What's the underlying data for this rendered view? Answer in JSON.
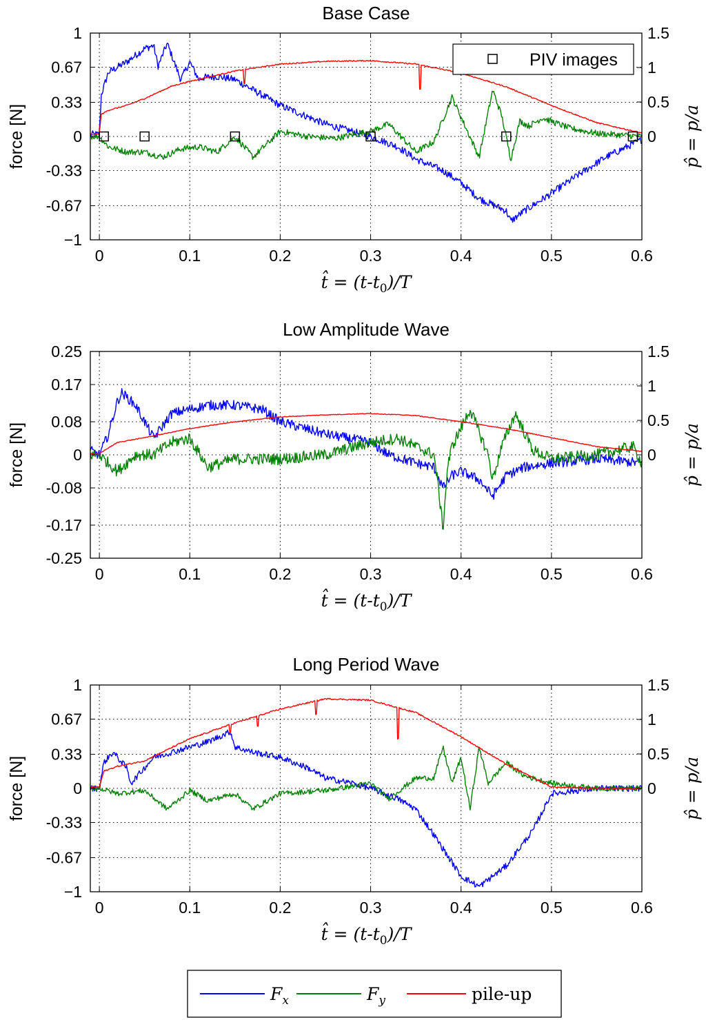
{
  "colors": {
    "fx": "#0000ff",
    "fy": "#008000",
    "pileup": "#ff0000",
    "frame": "#000000",
    "grid": "#000000"
  },
  "legend": {
    "items": [
      "F_x",
      "F_y",
      "pile-up"
    ],
    "fx_label": "F",
    "fx_sub": "x",
    "fy_label": "F",
    "fy_sub": "y",
    "pileup_label": "pile-up"
  },
  "chart_data": [
    {
      "type": "line",
      "title": "Base Case",
      "xlabel": "t̂ = (t-t0)/T",
      "ylabel": "force [N]",
      "y2label": "p̂ = p/a",
      "xlim": [
        -0.01,
        0.6
      ],
      "ylim": [
        -1,
        1
      ],
      "y2lim": [
        -1.5,
        1.5
      ],
      "xticks": [
        "0",
        "0.1",
        "0.2",
        "0.3",
        "0.4",
        "0.5",
        "0.6"
      ],
      "yticks": [
        "1",
        "0.67",
        "0.33",
        "0",
        "-0.33",
        "-0.67",
        "−1"
      ],
      "y2ticks": [
        "1.5",
        "1",
        "0.5",
        "0"
      ],
      "grid": true,
      "annotation_legend": "PIV images",
      "piv_times": [
        0.005,
        0.05,
        0.15,
        0.3,
        0.45,
        0.59
      ],
      "series": [
        {
          "name": "F_x",
          "axis": "left",
          "noise": 0.035,
          "x": [
            -0.01,
            0.0,
            0.002,
            0.01,
            0.03,
            0.05,
            0.06,
            0.065,
            0.075,
            0.09,
            0.1,
            0.11,
            0.115,
            0.13,
            0.15,
            0.2,
            0.25,
            0.3,
            0.33,
            0.35,
            0.38,
            0.4,
            0.42,
            0.45,
            0.455,
            0.47,
            0.5,
            0.53,
            0.56,
            0.6
          ],
          "y": [
            0.02,
            0.02,
            0.4,
            0.62,
            0.72,
            0.85,
            0.88,
            0.68,
            0.9,
            0.55,
            0.72,
            0.55,
            0.57,
            0.58,
            0.55,
            0.3,
            0.12,
            0.0,
            -0.1,
            -0.22,
            -0.33,
            -0.45,
            -0.6,
            -0.72,
            -0.82,
            -0.72,
            -0.55,
            -0.37,
            -0.2,
            -0.03
          ]
        },
        {
          "name": "F_y",
          "axis": "left",
          "noise": 0.03,
          "x": [
            -0.01,
            0.0,
            0.01,
            0.03,
            0.05,
            0.07,
            0.09,
            0.11,
            0.13,
            0.15,
            0.17,
            0.2,
            0.23,
            0.26,
            0.3,
            0.32,
            0.35,
            0.37,
            0.39,
            0.42,
            0.435,
            0.445,
            0.455,
            0.465,
            0.475,
            0.49,
            0.52,
            0.55,
            0.6
          ],
          "y": [
            0.0,
            0.0,
            -0.1,
            -0.15,
            -0.15,
            -0.2,
            -0.12,
            -0.1,
            -0.15,
            0.0,
            -0.2,
            0.05,
            0.0,
            -0.02,
            0.05,
            0.12,
            -0.15,
            -0.05,
            0.38,
            -0.2,
            0.45,
            0.2,
            -0.22,
            0.15,
            0.1,
            0.18,
            0.08,
            0.03,
            0.0
          ]
        },
        {
          "name": "pile-up",
          "axis": "right",
          "noise": 0.008,
          "x": [
            -0.01,
            0.0,
            0.002,
            0.01,
            0.03,
            0.05,
            0.08,
            0.1,
            0.15,
            0.2,
            0.25,
            0.3,
            0.35,
            0.4,
            0.45,
            0.5,
            0.55,
            0.6
          ],
          "y": [
            0.02,
            0.04,
            0.32,
            0.38,
            0.45,
            0.55,
            0.73,
            0.8,
            0.95,
            1.05,
            1.09,
            1.1,
            1.05,
            0.92,
            0.72,
            0.45,
            0.2,
            0.05
          ],
          "spikes": [
            [
              0.16,
              -0.2
            ],
            [
              0.355,
              -0.35
            ]
          ]
        }
      ]
    },
    {
      "type": "line",
      "title": "Low Amplitude Wave",
      "xlabel": "t̂ = (t-t0)/T",
      "ylabel": "force [N]",
      "y2label": "p̂ = p/a",
      "xlim": [
        -0.01,
        0.6
      ],
      "ylim": [
        -0.25,
        0.25
      ],
      "y2lim": [
        -1.5,
        1.5
      ],
      "xticks": [
        "0",
        "0.1",
        "0.2",
        "0.3",
        "0.4",
        "0.5",
        "0.6"
      ],
      "yticks": [
        "0.25",
        "0.17",
        "0.08",
        "0",
        "-0.08",
        "-0.17",
        "-0.25"
      ],
      "y2ticks": [
        "1.5",
        "1",
        "0.5",
        "0"
      ],
      "grid": true,
      "series": [
        {
          "name": "F_x",
          "axis": "left",
          "noise": 0.012,
          "x": [
            -0.01,
            0.0,
            0.01,
            0.02,
            0.025,
            0.04,
            0.06,
            0.08,
            0.1,
            0.12,
            0.15,
            0.18,
            0.2,
            0.25,
            0.3,
            0.32,
            0.35,
            0.37,
            0.38,
            0.39,
            0.4,
            0.42,
            0.435,
            0.45,
            0.47,
            0.5,
            0.55,
            0.6
          ],
          "y": [
            0.01,
            0.0,
            0.05,
            0.13,
            0.15,
            0.12,
            0.04,
            0.1,
            0.11,
            0.12,
            0.12,
            0.11,
            0.08,
            0.05,
            0.03,
            0.0,
            -0.02,
            -0.03,
            -0.08,
            -0.05,
            -0.04,
            -0.06,
            -0.1,
            -0.05,
            -0.03,
            -0.02,
            -0.01,
            -0.02
          ]
        },
        {
          "name": "F_y",
          "axis": "left",
          "noise": 0.014,
          "x": [
            -0.01,
            0.0,
            0.02,
            0.04,
            0.06,
            0.08,
            0.1,
            0.12,
            0.15,
            0.2,
            0.25,
            0.3,
            0.33,
            0.35,
            0.37,
            0.375,
            0.38,
            0.385,
            0.39,
            0.41,
            0.43,
            0.435,
            0.445,
            0.46,
            0.48,
            0.5,
            0.55,
            0.59,
            0.6
          ],
          "y": [
            0.0,
            0.0,
            -0.04,
            0.0,
            0.0,
            0.03,
            0.04,
            -0.03,
            -0.01,
            -0.01,
            0.0,
            0.03,
            0.04,
            0.02,
            0.0,
            -0.08,
            -0.18,
            -0.03,
            0.02,
            0.11,
            0.0,
            -0.06,
            0.02,
            0.1,
            0.01,
            -0.01,
            0.0,
            0.02,
            -0.02
          ]
        },
        {
          "name": "pile-up",
          "axis": "right",
          "noise": 0.005,
          "x": [
            -0.01,
            0.0,
            0.02,
            0.05,
            0.1,
            0.15,
            0.2,
            0.25,
            0.3,
            0.35,
            0.4,
            0.45,
            0.5,
            0.55,
            0.6
          ],
          "y": [
            0.02,
            0.02,
            0.18,
            0.25,
            0.38,
            0.48,
            0.55,
            0.58,
            0.6,
            0.57,
            0.48,
            0.38,
            0.25,
            0.12,
            0.05
          ]
        }
      ]
    },
    {
      "type": "line",
      "title": "Long Period Wave",
      "xlabel": "t̂ = (t-t0)/T",
      "ylabel": "force [N]",
      "y2label": "p̂ = p/a",
      "xlim": [
        -0.01,
        0.6
      ],
      "ylim": [
        -1,
        1
      ],
      "y2lim": [
        -1.5,
        1.5
      ],
      "xticks": [
        "0",
        "0.1",
        "0.2",
        "0.3",
        "0.4",
        "0.5",
        "0.6"
      ],
      "yticks": [
        "1",
        "0.67",
        "0.33",
        "0",
        "-0.33",
        "-0.67",
        "−1"
      ],
      "y2ticks": [
        "1.5",
        "1",
        "0.5",
        "0"
      ],
      "grid": true,
      "series": [
        {
          "name": "F_x",
          "axis": "left",
          "noise": 0.03,
          "x": [
            -0.01,
            0.0,
            0.005,
            0.015,
            0.03,
            0.035,
            0.05,
            0.06,
            0.08,
            0.1,
            0.12,
            0.145,
            0.15,
            0.17,
            0.2,
            0.23,
            0.25,
            0.28,
            0.3,
            0.33,
            0.35,
            0.37,
            0.4,
            0.42,
            0.45,
            0.48,
            0.5,
            0.55,
            0.6
          ],
          "y": [
            0.0,
            0.0,
            0.25,
            0.35,
            0.2,
            0.05,
            0.2,
            0.3,
            0.35,
            0.4,
            0.45,
            0.55,
            0.4,
            0.35,
            0.3,
            0.2,
            0.1,
            0.05,
            0.0,
            -0.1,
            -0.2,
            -0.45,
            -0.85,
            -0.95,
            -0.75,
            -0.4,
            -0.05,
            0.0,
            0.0
          ]
        },
        {
          "name": "F_y",
          "axis": "left",
          "noise": 0.025,
          "x": [
            -0.01,
            0.0,
            0.02,
            0.05,
            0.075,
            0.1,
            0.12,
            0.15,
            0.17,
            0.2,
            0.25,
            0.3,
            0.32,
            0.35,
            0.37,
            0.38,
            0.39,
            0.4,
            0.41,
            0.42,
            0.43,
            0.45,
            0.47,
            0.5,
            0.55,
            0.6
          ],
          "y": [
            0.0,
            0.0,
            -0.05,
            -0.02,
            -0.2,
            -0.02,
            -0.12,
            -0.05,
            -0.2,
            -0.05,
            -0.02,
            0.05,
            -0.1,
            0.1,
            0.1,
            0.4,
            0.05,
            0.3,
            -0.2,
            0.4,
            0.05,
            0.25,
            0.12,
            0.05,
            0.0,
            0.0
          ]
        },
        {
          "name": "pile-up",
          "axis": "right",
          "noise": 0.01,
          "x": [
            -0.01,
            0.0,
            0.005,
            0.02,
            0.05,
            0.1,
            0.15,
            0.2,
            0.25,
            0.3,
            0.35,
            0.4,
            0.45,
            0.5,
            0.55,
            0.6
          ],
          "y": [
            0.02,
            0.02,
            0.25,
            0.32,
            0.4,
            0.72,
            0.95,
            1.15,
            1.3,
            1.28,
            1.1,
            0.75,
            0.35,
            0.02,
            0.0,
            0.0
          ],
          "spikes": [
            [
              0.145,
              -0.12
            ],
            [
              0.175,
              -0.15
            ],
            [
              0.24,
              -0.2
            ],
            [
              0.33,
              -0.45
            ]
          ]
        }
      ]
    }
  ]
}
